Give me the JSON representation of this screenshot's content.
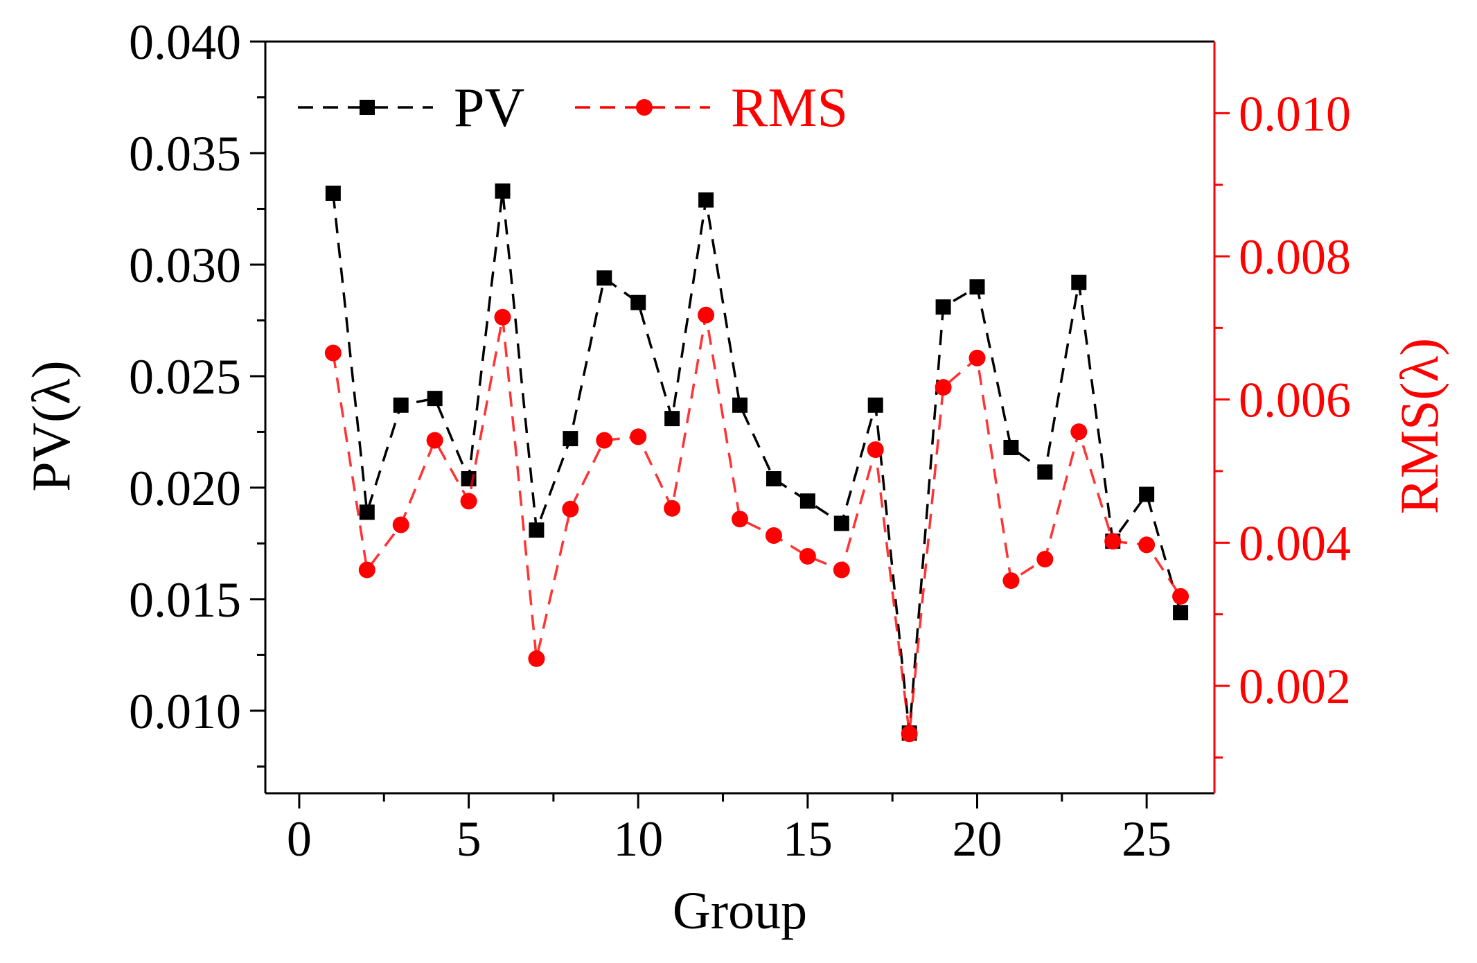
{
  "chart_data": {
    "type": "line",
    "title": "",
    "xlabel": "Group",
    "ylabel_left": "PV(λ)",
    "ylabel_right": "RMS(λ)",
    "xlim": [
      -1,
      27
    ],
    "ylim_left": [
      0.0063,
      0.04
    ],
    "ylim_right": [
      0.0005,
      0.011
    ],
    "x_ticks": [
      0,
      5,
      10,
      15,
      20,
      25
    ],
    "x_tick_labels": [
      "0",
      "5",
      "10",
      "15",
      "20",
      "25"
    ],
    "y_left_ticks": [
      0.01,
      0.015,
      0.02,
      0.025,
      0.03,
      0.035,
      0.04
    ],
    "y_left_tick_labels": [
      "0.010",
      "0.015",
      "0.020",
      "0.025",
      "0.030",
      "0.035",
      "0.040"
    ],
    "y_right_ticks": [
      0.002,
      0.004,
      0.006,
      0.008,
      0.01
    ],
    "y_right_tick_labels": [
      "0.002",
      "0.004",
      "0.006",
      "0.008",
      "0.010"
    ],
    "x": [
      1,
      2,
      3,
      4,
      5,
      6,
      7,
      8,
      9,
      10,
      11,
      12,
      13,
      14,
      15,
      16,
      17,
      18,
      19,
      20,
      21,
      22,
      23,
      24,
      25,
      26
    ],
    "series": [
      {
        "name": "PV",
        "axis": "left",
        "color": "#000000",
        "marker": "square",
        "line": "dashed",
        "values": [
          0.0332,
          0.0189,
          0.0237,
          0.024,
          0.0204,
          0.0333,
          0.0181,
          0.0222,
          0.0294,
          0.0283,
          0.0231,
          0.0329,
          0.0237,
          0.0204,
          0.0194,
          0.0184,
          0.0237,
          0.009,
          0.0281,
          0.029,
          0.0218,
          0.0207,
          0.0292,
          0.0176,
          0.0197,
          0.0144
        ]
      },
      {
        "name": "RMS",
        "axis": "right",
        "color": "#ff0000",
        "marker": "circle",
        "line": "dashed",
        "values": [
          0.00665,
          0.00362,
          0.00425,
          0.00543,
          0.00458,
          0.00715,
          0.00238,
          0.00447,
          0.00543,
          0.00548,
          0.00448,
          0.00718,
          0.00433,
          0.0041,
          0.00381,
          0.00362,
          0.0053,
          0.00133,
          0.00617,
          0.00658,
          0.00347,
          0.00377,
          0.00555,
          0.00402,
          0.00397,
          0.00325
        ]
      }
    ],
    "legend_position": "top-left",
    "grid": false
  }
}
